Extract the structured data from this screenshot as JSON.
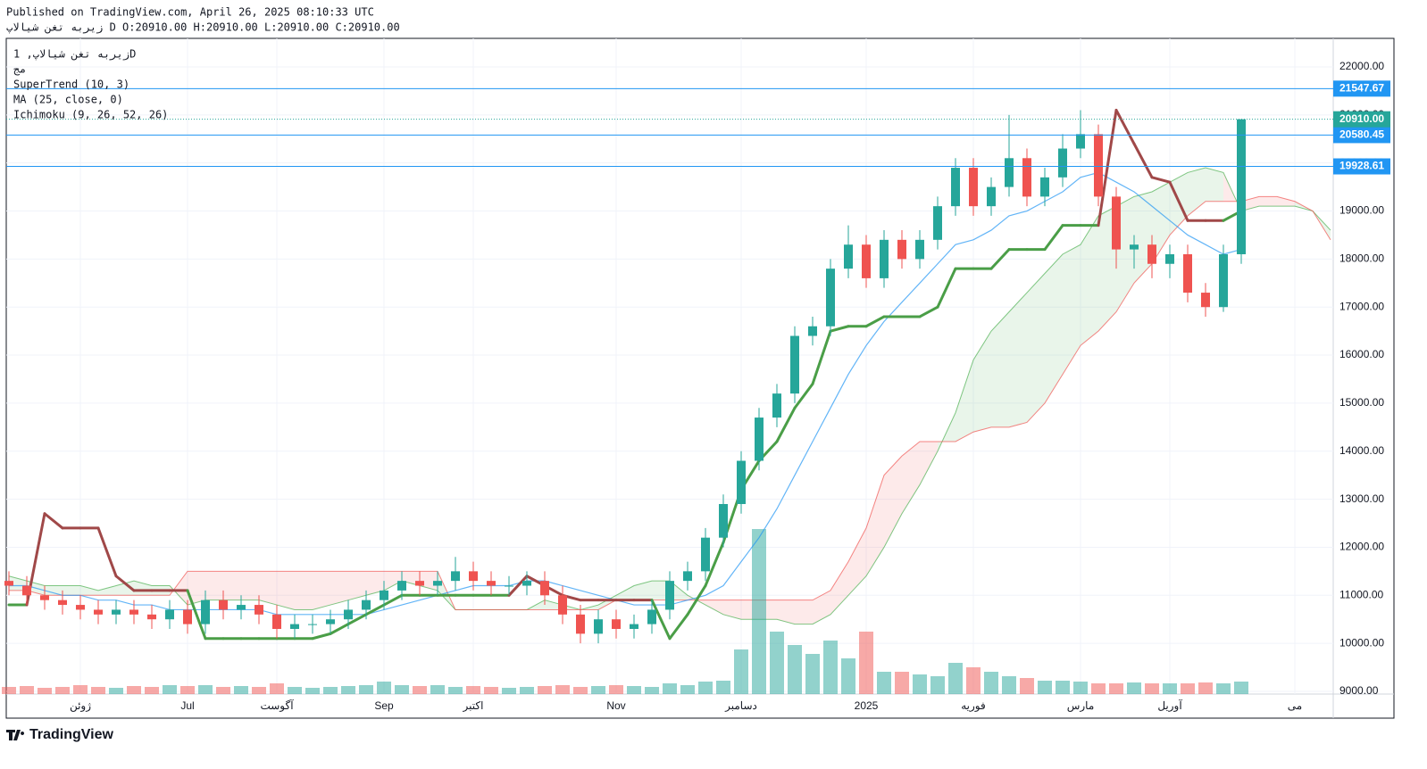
{
  "header": {
    "published": "Published on TradingView.com, April 26, 2025 08:10:33 UTC",
    "symbol_line": "زیربه تغن شیالاپ D O:20910.00 H:20910.00 L:20910.00 C:20910.00"
  },
  "logo": "TradingView",
  "chart_data": {
    "type": "candlestick",
    "title": "زیربه تغن شیالاپ, 1D",
    "subtitle": "مج",
    "categories": [
      null,
      null,
      null,
      null,
      "ژوئن",
      null,
      null,
      null,
      null,
      null,
      "Jul",
      null,
      null,
      null,
      null,
      "آگوست",
      null,
      null,
      null,
      null,
      null,
      "Sep",
      null,
      null,
      null,
      null,
      "اکتبر",
      null,
      null,
      null,
      null,
      null,
      null,
      null,
      "Nov",
      null,
      null,
      null,
      null,
      null,
      null,
      "دسامبر",
      null,
      null,
      null,
      null,
      null,
      null,
      "2025",
      null,
      null,
      null,
      null,
      null,
      "فوریه",
      null,
      null,
      null,
      null,
      null,
      "مارس",
      null,
      null,
      null,
      null,
      "آوریل",
      null,
      null,
      null,
      null,
      null,
      null,
      "می",
      null,
      null
    ],
    "open": [
      11300,
      11200,
      11000,
      10900,
      10800,
      10700,
      10600,
      10700,
      10600,
      10500,
      10700,
      10400,
      10900,
      10700,
      10800,
      10600,
      10300,
      10400,
      10400,
      10500,
      10700,
      10900,
      11100,
      11300,
      11200,
      11300,
      11500,
      11300,
      11200,
      11200,
      11300,
      11000,
      10600,
      10200,
      10500,
      10300,
      10400,
      10700,
      11300,
      11500,
      12200,
      12900,
      13800,
      14700,
      15200,
      16400,
      16600,
      17800,
      18300,
      17600,
      18400,
      18000,
      18400,
      19100,
      19900,
      19100,
      19500,
      20100,
      19300,
      19700,
      20300,
      20600,
      19300,
      18200,
      18300,
      17900,
      18100,
      17300,
      17000,
      18100,
      null,
      null,
      null,
      null,
      null
    ],
    "high": [
      11500,
      11400,
      11200,
      11100,
      11000,
      10900,
      10900,
      10900,
      10800,
      10900,
      10900,
      11100,
      11100,
      11000,
      11000,
      10800,
      10600,
      10600,
      10700,
      10900,
      11100,
      11300,
      11500,
      11500,
      11500,
      11800,
      11700,
      11500,
      11400,
      11500,
      11500,
      11200,
      10800,
      10700,
      10700,
      10600,
      10900,
      11500,
      11700,
      12400,
      13100,
      14000,
      14900,
      15400,
      16600,
      16800,
      18000,
      18700,
      18500,
      18600,
      18600,
      18600,
      19300,
      20100,
      20100,
      19700,
      21000,
      20300,
      19900,
      20600,
      21100,
      20800,
      19500,
      18500,
      18500,
      18300,
      18300,
      17500,
      18300,
      20910,
      null,
      null,
      null,
      null,
      null
    ],
    "low": [
      11000,
      10800,
      10700,
      10600,
      10500,
      10400,
      10400,
      10400,
      10300,
      10300,
      10200,
      10200,
      10500,
      10500,
      10400,
      10100,
      10100,
      10200,
      10200,
      10300,
      10500,
      10700,
      10900,
      11000,
      11000,
      11100,
      11100,
      11000,
      11000,
      11000,
      10800,
      10400,
      10000,
      10000,
      10100,
      10100,
      10200,
      10500,
      11100,
      11300,
      12000,
      12700,
      13600,
      14500,
      15000,
      16200,
      16400,
      17600,
      17400,
      17400,
      17800,
      17800,
      18200,
      18900,
      18900,
      18900,
      19300,
      19100,
      19100,
      19500,
      20100,
      19100,
      17800,
      17800,
      17600,
      17600,
      17100,
      16800,
      16900,
      17900,
      null,
      null,
      null,
      null,
      null
    ],
    "close": [
      11200,
      11000,
      10900,
      10800,
      10700,
      10600,
      10700,
      10600,
      10500,
      10700,
      10400,
      10900,
      10700,
      10800,
      10600,
      10300,
      10400,
      10400,
      10500,
      10700,
      10900,
      11100,
      11300,
      11200,
      11300,
      11500,
      11300,
      11200,
      11200,
      11300,
      11000,
      10600,
      10200,
      10500,
      10300,
      10400,
      10700,
      11300,
      11500,
      12200,
      12900,
      13800,
      14700,
      15200,
      16400,
      16600,
      17800,
      18300,
      17600,
      18400,
      18000,
      18400,
      19100,
      19900,
      19100,
      19500,
      20100,
      19300,
      19700,
      20300,
      20600,
      19300,
      18200,
      18300,
      17900,
      18100,
      17300,
      17000,
      18100,
      20910,
      null,
      null,
      null,
      null,
      null
    ],
    "volume": [
      8,
      9,
      7,
      8,
      10,
      8,
      7,
      9,
      8,
      10,
      9,
      10,
      8,
      9,
      8,
      12,
      8,
      7,
      8,
      9,
      10,
      14,
      10,
      9,
      10,
      8,
      9,
      8,
      7,
      8,
      9,
      10,
      8,
      9,
      10,
      9,
      8,
      12,
      10,
      14,
      15,
      50,
      185,
      70,
      55,
      45,
      60,
      40,
      70,
      25,
      25,
      22,
      20,
      35,
      30,
      25,
      20,
      18,
      15,
      15,
      14,
      12,
      12,
      13,
      12,
      12,
      12,
      13,
      12,
      14,
      null,
      null,
      null,
      null,
      null
    ],
    "up_color": "#26a69a",
    "down_color": "#ef5350",
    "ylim": [
      8944,
      22594
    ],
    "yticks": [
      {
        "value": 9000,
        "label": "9000.00"
      },
      {
        "value": 10000,
        "label": "10000.00"
      },
      {
        "value": 11000,
        "label": "11000.00"
      },
      {
        "value": 12000,
        "label": "12000.00"
      },
      {
        "value": 13000,
        "label": "13000.00"
      },
      {
        "value": 14000,
        "label": "14000.00"
      },
      {
        "value": 15000,
        "label": "15000.00"
      },
      {
        "value": 16000,
        "label": "16000.00"
      },
      {
        "value": 17000,
        "label": "17000.00"
      },
      {
        "value": 18000,
        "label": "18000.00"
      },
      {
        "value": 19000,
        "label": "19000.00"
      },
      {
        "value": 20000,
        "label": "20000.00"
      },
      {
        "value": 21000,
        "label": "21000.00"
      },
      {
        "value": 22000,
        "label": "22000.00"
      }
    ],
    "grid": true,
    "supertrend": {
      "name": "SuperTrend (10, 3)",
      "up_color": "#4a9e47",
      "down_color": "#a04848",
      "values": [
        10800,
        10800,
        12700,
        12400,
        12400,
        12400,
        11400,
        11100,
        11100,
        11100,
        11100,
        10100,
        10100,
        10100,
        10100,
        10100,
        10100,
        10100,
        10200,
        10400,
        10600,
        10800,
        11000,
        11000,
        11000,
        11000,
        11000,
        11000,
        11000,
        11400,
        11200,
        11000,
        10900,
        10900,
        10900,
        10900,
        10900,
        10100,
        10600,
        11200,
        12100,
        13200,
        13800,
        14200,
        14900,
        15400,
        16500,
        16600,
        16600,
        16800,
        16800,
        16800,
        17000,
        17800,
        17800,
        17800,
        18200,
        18200,
        18200,
        18700,
        18700,
        18700,
        21100,
        20400,
        19700,
        19600,
        18800,
        18800,
        18800,
        19000,
        null,
        null,
        null,
        null,
        null
      ],
      "direction": [
        1,
        1,
        -1,
        -1,
        -1,
        -1,
        -1,
        -1,
        -1,
        -1,
        -1,
        1,
        1,
        1,
        1,
        1,
        1,
        1,
        1,
        1,
        1,
        1,
        1,
        1,
        1,
        1,
        1,
        1,
        1,
        -1,
        -1,
        -1,
        -1,
        -1,
        -1,
        -1,
        -1,
        1,
        1,
        1,
        1,
        1,
        1,
        1,
        1,
        1,
        1,
        1,
        1,
        1,
        1,
        1,
        1,
        1,
        1,
        1,
        1,
        1,
        1,
        1,
        1,
        1,
        -1,
        -1,
        -1,
        -1,
        -1,
        -1,
        -1,
        1,
        null,
        null,
        null,
        null,
        null
      ]
    },
    "ma": {
      "name": "MA (25, close, 0)",
      "color": "#2196f3",
      "values": [
        11200,
        11200,
        11100,
        11000,
        11000,
        10900,
        10900,
        10800,
        10800,
        10700,
        10700,
        10700,
        10700,
        10700,
        10700,
        10600,
        10600,
        10600,
        10600,
        10600,
        10600,
        10700,
        10800,
        10900,
        11000,
        11100,
        11200,
        11200,
        11200,
        11300,
        11300,
        11200,
        11100,
        11000,
        10900,
        10800,
        10800,
        10800,
        10900,
        11000,
        11200,
        11700,
        12200,
        12800,
        13500,
        14200,
        14900,
        15600,
        16200,
        16700,
        17100,
        17500,
        17900,
        18300,
        18400,
        18600,
        18900,
        19000,
        19200,
        19400,
        19700,
        19800,
        19600,
        19400,
        19100,
        18800,
        18500,
        18300,
        18100,
        18200,
        null,
        null,
        null,
        null,
        null
      ]
    },
    "ichimoku": {
      "name": "Ichimoku (9, 26, 52, 26)",
      "color_a": "#4caf50",
      "color_b": "#ef5350",
      "span_a": [
        11400,
        11300,
        11200,
        11200,
        11200,
        11100,
        11200,
        11300,
        11200,
        11200,
        10800,
        10900,
        10900,
        10900,
        10900,
        10800,
        10700,
        10700,
        10800,
        10900,
        11000,
        11100,
        11300,
        11200,
        11100,
        10700,
        10700,
        10700,
        10700,
        10700,
        10900,
        10800,
        10700,
        10800,
        11000,
        11200,
        11300,
        11300,
        11000,
        10800,
        10600,
        10500,
        10500,
        10500,
        10400,
        10400,
        10600,
        11000,
        11400,
        12000,
        12700,
        13300,
        14000,
        14800,
        15900,
        16500,
        16900,
        17300,
        17700,
        18100,
        18300,
        18900,
        19100,
        19300,
        19400,
        19600,
        19800,
        19900,
        19800,
        19000,
        19100,
        19100,
        19100,
        19000,
        18600
      ],
      "span_b": [
        11100,
        11100,
        11000,
        11000,
        11000,
        11000,
        11000,
        11000,
        11000,
        11000,
        11500,
        11500,
        11500,
        11500,
        11500,
        11500,
        11500,
        11500,
        11500,
        11500,
        11500,
        11500,
        11500,
        11500,
        11500,
        10700,
        10700,
        10700,
        10700,
        10700,
        10700,
        10700,
        10700,
        10700,
        10900,
        10900,
        10900,
        10900,
        10900,
        10900,
        10900,
        10900,
        10900,
        10900,
        10900,
        10900,
        11100,
        11700,
        12400,
        13500,
        13900,
        14200,
        14200,
        14200,
        14400,
        14500,
        14500,
        14600,
        15000,
        15600,
        16200,
        16500,
        16900,
        17500,
        17900,
        18500,
        18900,
        19200,
        19200,
        19200,
        19300,
        19300,
        19200,
        19000,
        18400
      ]
    },
    "price_lines": [
      {
        "value": 21547.67,
        "color": "#2196f3"
      },
      {
        "value": 20580.45,
        "color": "#2196f3"
      },
      {
        "value": 19928.61,
        "color": "#2196f3"
      }
    ],
    "last_price": {
      "value": 20910,
      "label": "20910.00",
      "color": "#26a69a"
    }
  }
}
